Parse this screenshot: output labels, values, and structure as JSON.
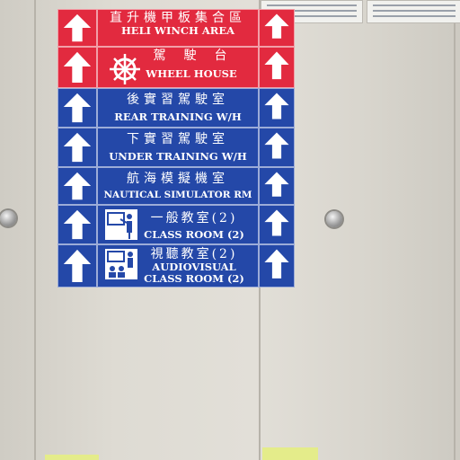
{
  "sign": {
    "rows": [
      {
        "cn": "直升機甲板集合區",
        "en": "HELI WINCH AREA",
        "color": "#e22a3f"
      },
      {
        "cn": "駕　駛　台",
        "en": "WHEEL HOUSE",
        "color": "#e22a3f",
        "icon": "ship-wheel-icon"
      },
      {
        "cn": "後實習駕駛室",
        "en": "REAR TRAINING W/H",
        "color": "#2448a8"
      },
      {
        "cn": "下實習駕駛室",
        "en": "UNDER TRAINING W/H",
        "color": "#2448a8"
      },
      {
        "cn": "航海模擬機室",
        "en": "NAUTICAL SIMULATOR RM",
        "color": "#2448a8"
      },
      {
        "cn": "一般教室(2)",
        "en": "CLASS ROOM (2)",
        "color": "#2448a8",
        "icon": "classroom-teacher-icon"
      },
      {
        "cn": "視聽教室(2)",
        "en": "AUDIOVISUAL",
        "en2": "CLASS ROOM (2)",
        "color": "#2448a8",
        "icon": "audiovisual-classroom-icon"
      }
    ],
    "arrow_icon": "up-arrow-icon",
    "accent_red": "#e22a3f",
    "accent_blue": "#2448a8"
  }
}
